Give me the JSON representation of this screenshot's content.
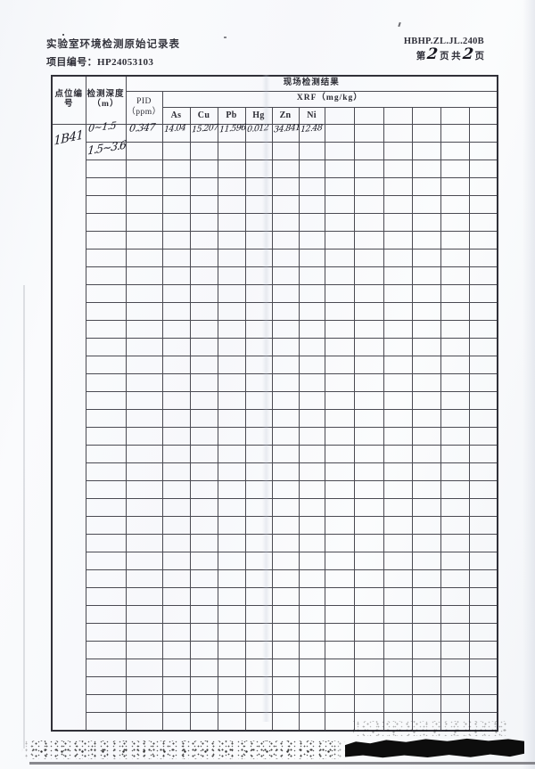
{
  "page": {
    "title": "实验室环境检测原始记录表",
    "doc_code": "HBHP.ZL.JL.240B",
    "project_label": "项目编号：",
    "project_number": "HP24053103",
    "pagination": {
      "prefix": "第",
      "current": "2",
      "mid": "页 共",
      "total": "2",
      "suffix": "页"
    }
  },
  "table": {
    "header": {
      "point_col": "点位编号",
      "depth_col": "检测深度（m）",
      "results_group": "现场检测结果",
      "pid_label": "PID",
      "pid_unit": "（ppm）",
      "xrf_group": "XRF（mg/kg）",
      "elements": [
        "As",
        "Cu",
        "Pb",
        "Hg",
        "Zn",
        "Ni"
      ],
      "extra_empty_columns": 6
    },
    "body": {
      "point_id": "1B41",
      "total_rows": 34,
      "rows": [
        {
          "depth": "0~1.5",
          "pid": "0.347",
          "As": "14.04",
          "Cu": "15.207",
          "Pb": "11.596",
          "Hg": "0.012",
          "Zn": "34.841",
          "Ni": "12.48"
        },
        {
          "depth": "1.5~3.6"
        }
      ]
    }
  }
}
